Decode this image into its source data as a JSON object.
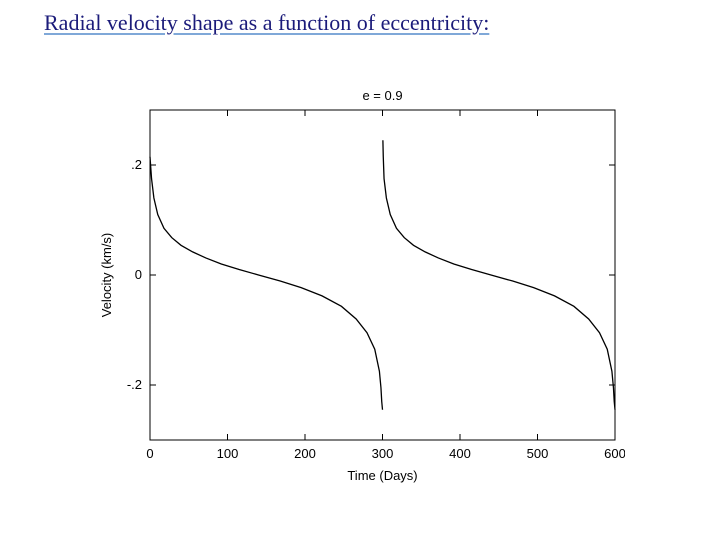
{
  "title": "Radial velocity shape as a function of eccentricity:",
  "title_color": "#1b1b7a",
  "chart": {
    "type": "line",
    "plot_title": "e = 0.9",
    "plot_title_fontsize": 13,
    "xlabel": "Time (Days)",
    "ylabel": "Velocity (km/s)",
    "label_fontsize": 13,
    "tick_fontsize": 13,
    "xlim": [
      0,
      600
    ],
    "ylim": [
      -0.3,
      0.3
    ],
    "xticks": [
      0,
      100,
      200,
      300,
      400,
      500,
      600
    ],
    "yticks": [
      -0.2,
      0,
      0.2
    ],
    "ytick_labels": [
      "-.2",
      "0",
      ".2"
    ],
    "background_color": "#ffffff",
    "axis_color": "#000000",
    "grid": false,
    "line_color": "#000000",
    "line_width": 1.3,
    "series": {
      "x": [
        0,
        2,
        5,
        10,
        18,
        28,
        40,
        55,
        72,
        92,
        115,
        140,
        168,
        195,
        222,
        247,
        266,
        280,
        290,
        296,
        298,
        299,
        300,
        300.5,
        301,
        302,
        305,
        310,
        318,
        328,
        340,
        355,
        372,
        392,
        415,
        440,
        468,
        495,
        522,
        547,
        566,
        580,
        590,
        596,
        598,
        599,
        600
      ],
      "y": [
        0.215,
        0.175,
        0.14,
        0.11,
        0.085,
        0.068,
        0.054,
        0.042,
        0.031,
        0.02,
        0.01,
        0.0,
        -0.011,
        -0.023,
        -0.038,
        -0.057,
        -0.08,
        -0.105,
        -0.135,
        -0.175,
        -0.205,
        -0.23,
        -0.245,
        0.245,
        0.215,
        0.175,
        0.14,
        0.11,
        0.085,
        0.068,
        0.054,
        0.042,
        0.031,
        0.02,
        0.01,
        0.0,
        -0.011,
        -0.023,
        -0.038,
        -0.057,
        -0.08,
        -0.105,
        -0.135,
        -0.175,
        -0.205,
        -0.23,
        -0.245
      ]
    }
  }
}
